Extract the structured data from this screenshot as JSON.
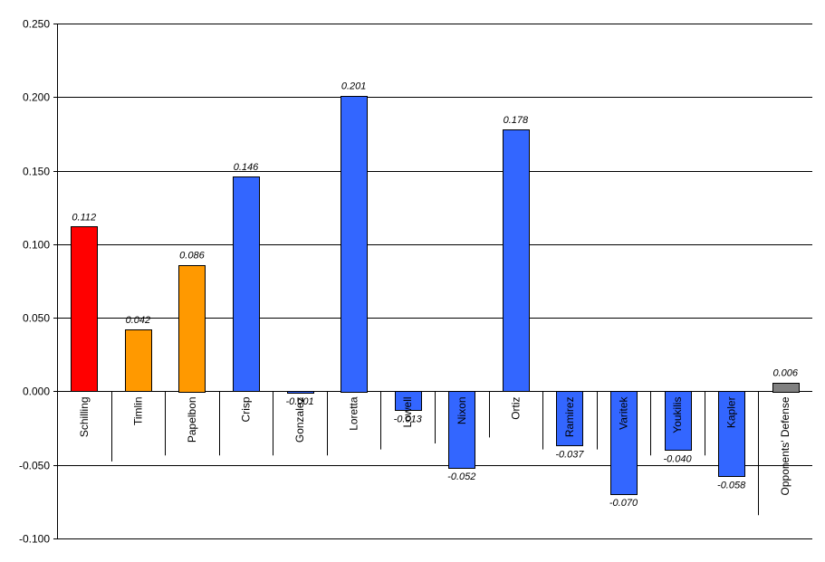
{
  "chart_data": {
    "type": "bar",
    "categories": [
      "Schilling",
      "Timlin",
      "Papelbon",
      "Crisp",
      "Gonzalez",
      "Loretta",
      "Lowell",
      "Nixon",
      "Ortiz",
      "Ramirez",
      "Varitek",
      "Youkilis",
      "Kapler",
      "Opponents' Defense"
    ],
    "values": [
      0.112,
      0.042,
      0.086,
      0.146,
      -0.001,
      0.201,
      -0.013,
      -0.052,
      0.178,
      -0.037,
      -0.07,
      -0.04,
      -0.058,
      0.006
    ],
    "value_labels": [
      "0.112",
      "0.042",
      "0.086",
      "0.146",
      "-0.001",
      "0.201",
      "-0.013",
      "-0.052",
      "0.178",
      "-0.037",
      "-0.070",
      "-0.040",
      "-0.058",
      "0.006"
    ],
    "colors": [
      "#ff0000",
      "#ff9900",
      "#ff9900",
      "#3366ff",
      "#3366ff",
      "#3366ff",
      "#3366ff",
      "#3366ff",
      "#3366ff",
      "#3366ff",
      "#3366ff",
      "#3366ff",
      "#3366ff",
      "#808080"
    ],
    "ylim": [
      -0.1,
      0.25
    ],
    "yticks": [
      -0.1,
      -0.05,
      0.0,
      0.05,
      0.1,
      0.15,
      0.2,
      0.25
    ],
    "ytick_labels": [
      "-0.100",
      "-0.050",
      "0.000",
      "0.050",
      "0.100",
      "0.150",
      "0.200",
      "0.250"
    ],
    "grid": true,
    "title": "",
    "xlabel": "",
    "ylabel": ""
  }
}
